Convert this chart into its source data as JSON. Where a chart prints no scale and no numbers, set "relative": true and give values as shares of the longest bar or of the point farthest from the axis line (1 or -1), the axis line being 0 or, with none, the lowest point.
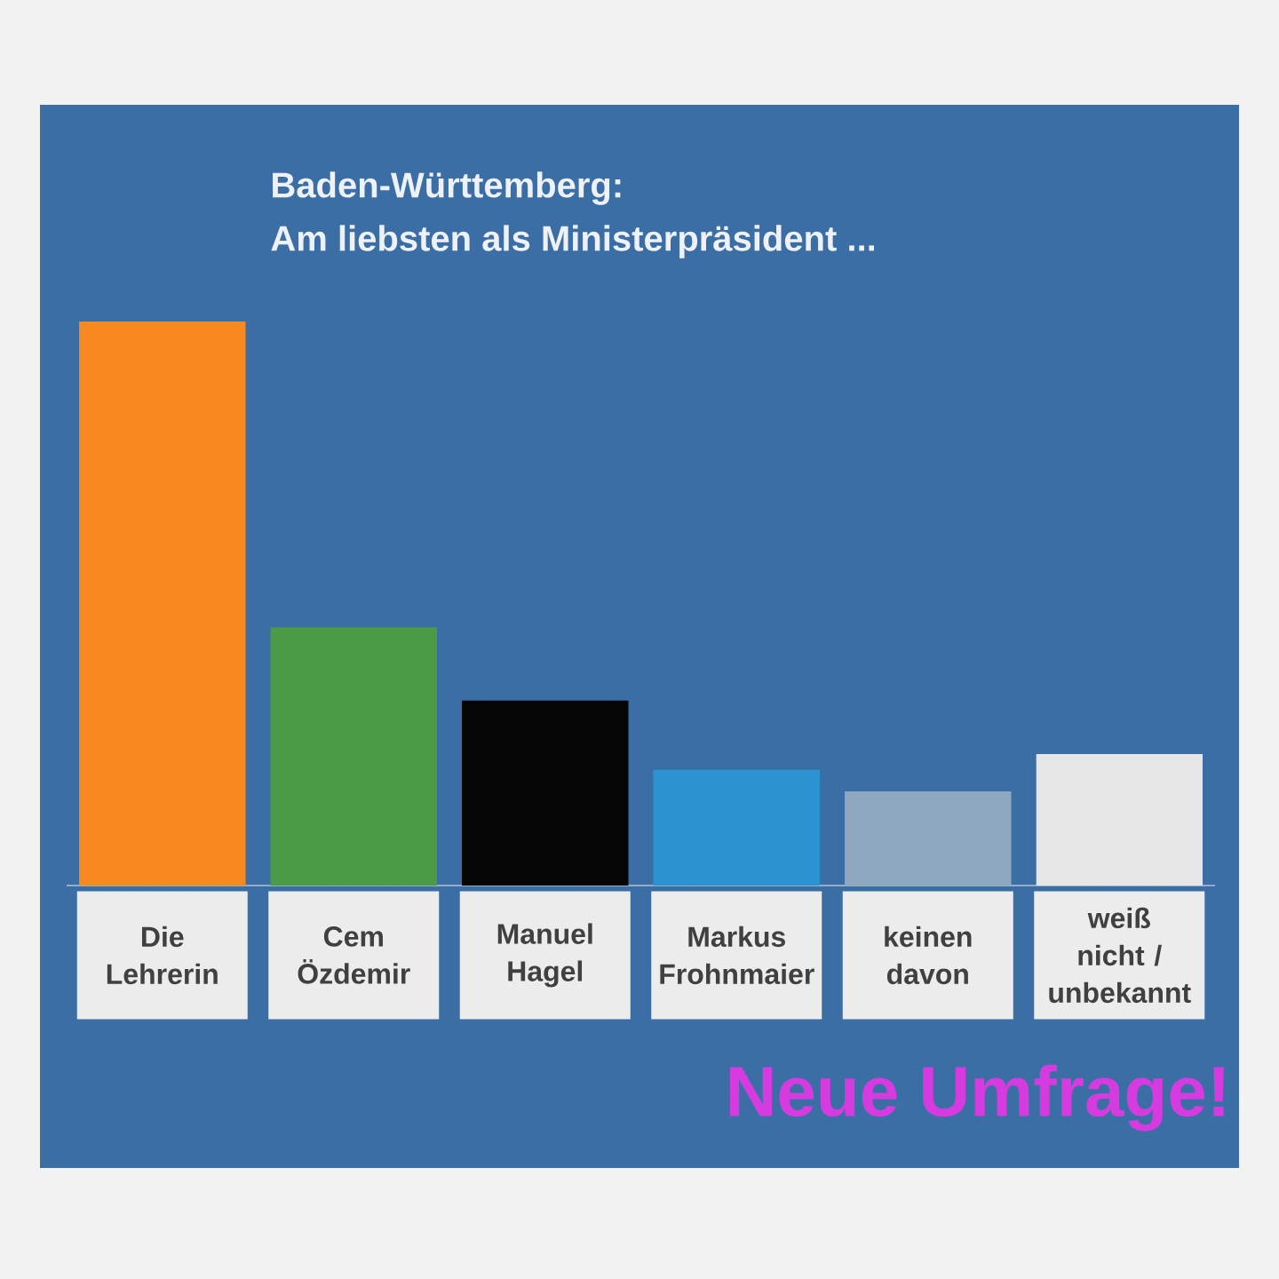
{
  "chart_data": {
    "type": "bar",
    "title": "Baden-Württemberg:",
    "subtitle": "Am liebsten als Ministerpräsident ...",
    "categories": [
      "Die Lehrerin",
      "Cem Özdemir",
      "Manuel Hagel",
      "Markus Frohnmaier",
      "keinen davon",
      "weiß nicht / unbekannt"
    ],
    "values": [
      1,
      0.458,
      0.328,
      0.205,
      0.167,
      0.233
    ],
    "colors": [
      "#f7891e",
      "#4a9a46",
      "#050505",
      "#2a93d0",
      "#8ea8bf",
      "#e6e6e6"
    ],
    "relative": true,
    "annotations": [
      "Neue Umfrage!"
    ]
  }
}
